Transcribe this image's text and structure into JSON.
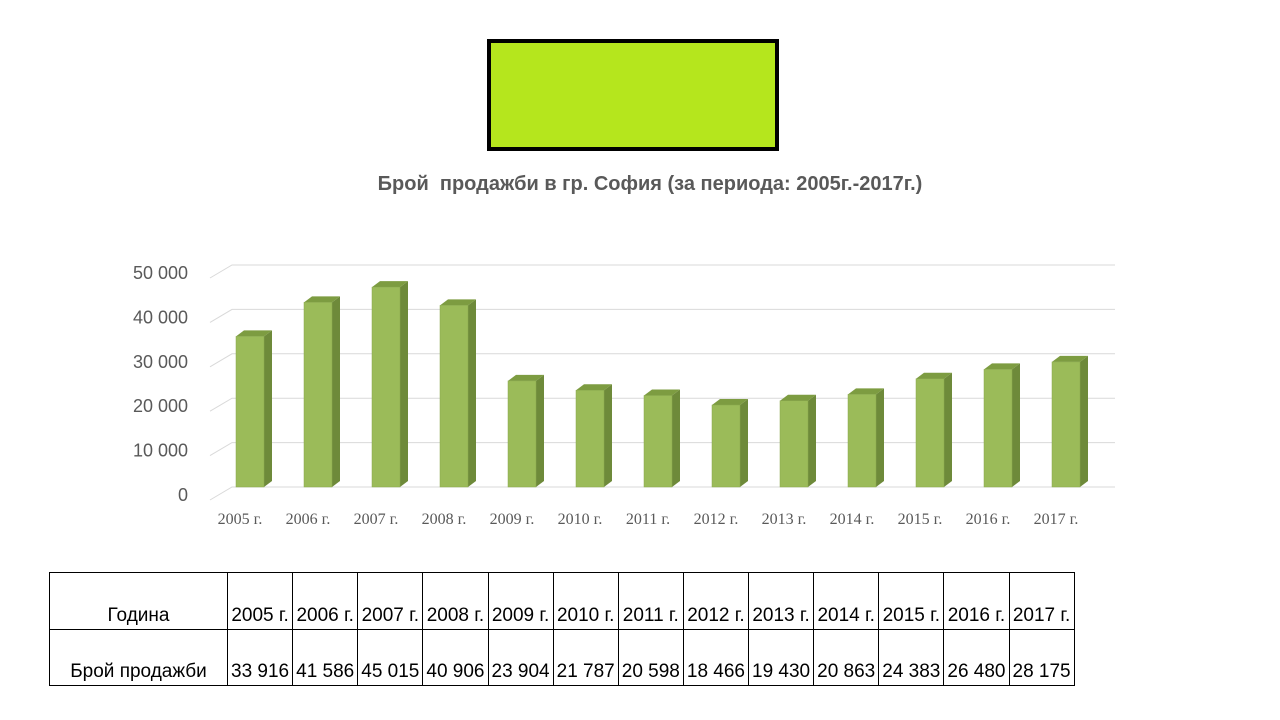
{
  "colors": {
    "logo_fill": "#b5e61d",
    "bar_front": "#9bbb59",
    "bar_side": "#6e8a3a",
    "bar_top": "#7d9c41"
  },
  "chart_data": {
    "type": "bar",
    "title": "Брой  продажби в гр. София (за периода: 2005г.-2017г.)",
    "categories": [
      "2005 г.",
      "2006 г.",
      "2007 г.",
      "2008 г.",
      "2009 г.",
      "2010 г.",
      "2011 г.",
      "2012 г.",
      "2013 г.",
      "2014 г.",
      "2015 г.",
      "2016 г.",
      "2017 г."
    ],
    "values": [
      33916,
      41586,
      45015,
      40906,
      23904,
      21787,
      20598,
      18466,
      19430,
      20863,
      24383,
      26480,
      28175
    ],
    "ylim": [
      0,
      50000
    ],
    "yticks": [
      0,
      10000,
      20000,
      30000,
      40000,
      50000
    ],
    "ytick_labels": [
      "0",
      "10 000",
      "20 000",
      "30 000",
      "40 000",
      "50 000"
    ],
    "grid": true,
    "style": "3d-column"
  },
  "table": {
    "row_headers": [
      "Година",
      "Брой  продажби"
    ],
    "years": [
      "2005 г.",
      "2006 г.",
      "2007 г.",
      "2008 г.",
      "2009 г.",
      "2010 г.",
      "2011 г.",
      "2012 г.",
      "2013 г.",
      "2014 г.",
      "2015 г.",
      "2016 г.",
      "2017 г."
    ],
    "sales": [
      "33 916",
      "41 586",
      "45 015",
      "40 906",
      "23 904",
      "21 787",
      "20 598",
      "18 466",
      "19 430",
      "20 863",
      "24 383",
      "26 480",
      "28 175"
    ]
  }
}
